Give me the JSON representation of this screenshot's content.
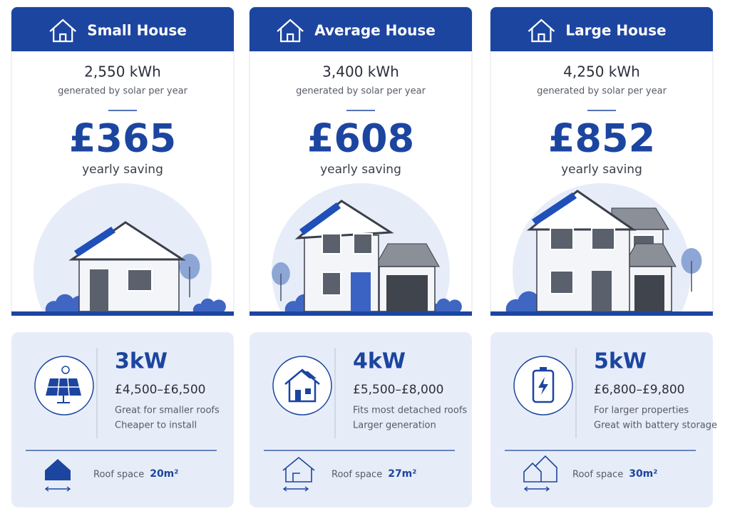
{
  "cards": [
    {
      "title": "Small House",
      "generation": "2,550 kWh",
      "generation_label": "generated by solar per year",
      "saving": "£365",
      "saving_label": "yearly saving",
      "system_size": "3kW",
      "cost_range": "£4,500–£6,500",
      "notes": [
        "Great for smaller roofs",
        "Cheaper to install"
      ],
      "roof_space_label": "Roof space",
      "roof_space": "20m²"
    },
    {
      "title": "Average House",
      "generation": "3,400 kWh",
      "generation_label": "generated by solar per year",
      "saving": "£608",
      "saving_label": "yearly saving",
      "system_size": "4kW",
      "cost_range": "£5,500–£8,000",
      "notes": [
        "Fits most detached roofs",
        "Larger generation"
      ],
      "roof_space_label": "Roof space",
      "roof_space": "27m²"
    },
    {
      "title": "Large House",
      "generation": "4,250 kWh",
      "generation_label": "generated by solar per year",
      "saving": "£852",
      "saving_label": "yearly saving",
      "system_size": "5kW",
      "cost_range": "£6,800–£9,800",
      "notes": [
        "For larger properties",
        "Great with battery storage"
      ],
      "roof_space_label": "Roof space",
      "roof_space": "30m²"
    }
  ]
}
